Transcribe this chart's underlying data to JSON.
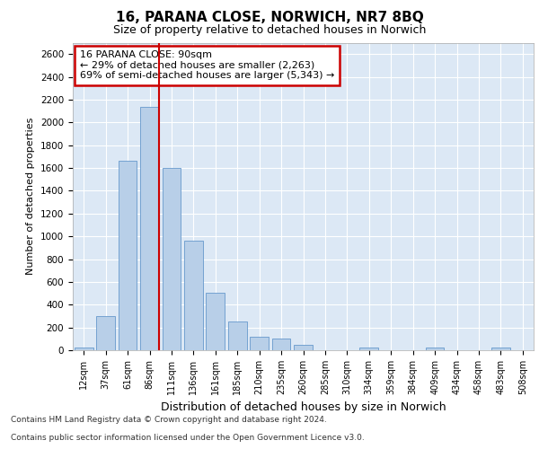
{
  "title1": "16, PARANA CLOSE, NORWICH, NR7 8BQ",
  "title2": "Size of property relative to detached houses in Norwich",
  "xlabel": "Distribution of detached houses by size in Norwich",
  "ylabel": "Number of detached properties",
  "categories": [
    "12sqm",
    "37sqm",
    "61sqm",
    "86sqm",
    "111sqm",
    "136sqm",
    "161sqm",
    "185sqm",
    "210sqm",
    "235sqm",
    "260sqm",
    "285sqm",
    "310sqm",
    "334sqm",
    "359sqm",
    "384sqm",
    "409sqm",
    "434sqm",
    "458sqm",
    "483sqm",
    "508sqm"
  ],
  "values": [
    25,
    300,
    1665,
    2140,
    1600,
    960,
    505,
    250,
    120,
    100,
    45,
    0,
    0,
    25,
    0,
    0,
    20,
    0,
    0,
    25,
    0
  ],
  "bar_color": "#b8cfe8",
  "bar_edge_color": "#6699cc",
  "annotation_title": "16 PARANA CLOSE: 90sqm",
  "annotation_line1": "← 29% of detached houses are smaller (2,263)",
  "annotation_line2": "69% of semi-detached houses are larger (5,343) →",
  "annotation_box_color": "#ffffff",
  "annotation_box_edge": "#cc0000",
  "property_line_color": "#cc0000",
  "ylim": [
    0,
    2700
  ],
  "yticks": [
    0,
    200,
    400,
    600,
    800,
    1000,
    1200,
    1400,
    1600,
    1800,
    2000,
    2200,
    2400,
    2600
  ],
  "footer1": "Contains HM Land Registry data © Crown copyright and database right 2024.",
  "footer2": "Contains public sector information licensed under the Open Government Licence v3.0.",
  "bg_color": "#dce8f5",
  "title1_fontsize": 11,
  "title2_fontsize": 9
}
